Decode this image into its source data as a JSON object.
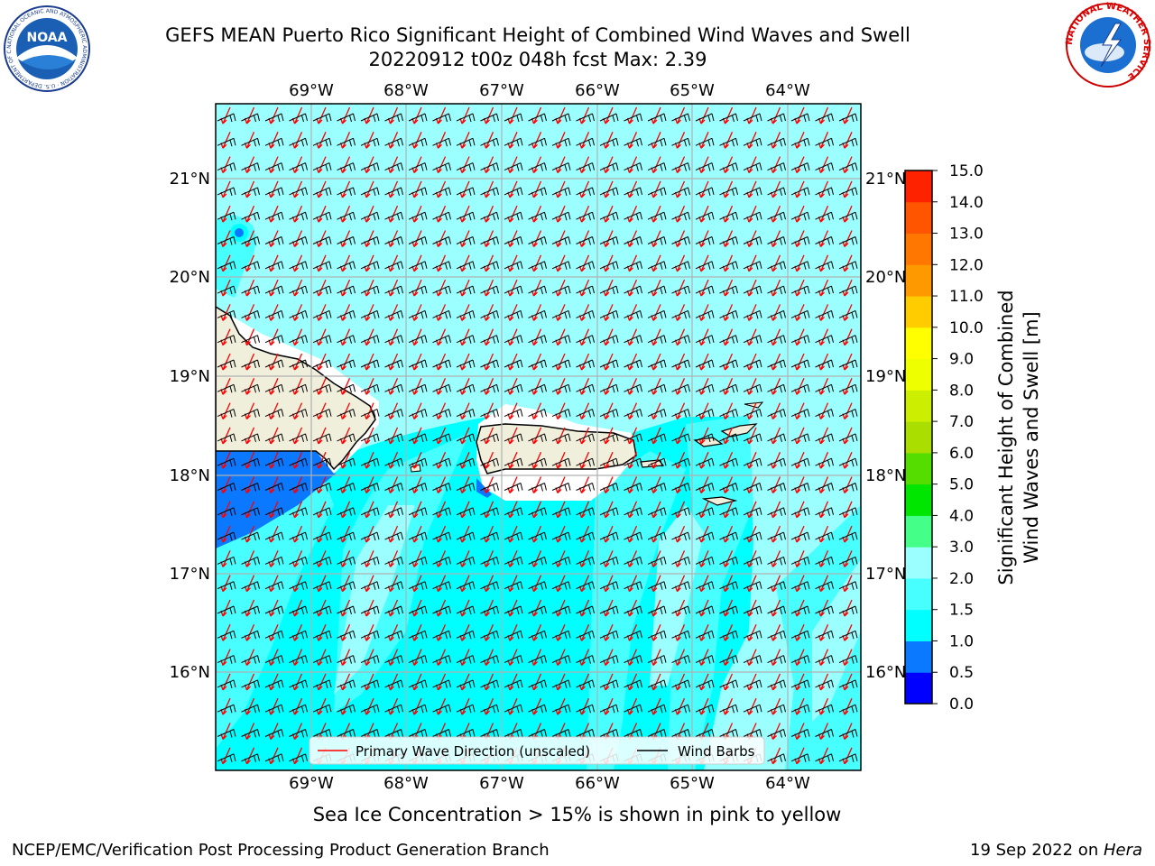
{
  "header": {
    "title_line1": "GEFS MEAN Puerto Rico Significant Height of Combined Wind Waves and Swell",
    "title_line2": "20220912 t00z 048h fcst   Max: 2.39"
  },
  "logos": {
    "noaa": {
      "text": "NOAA",
      "ring_text": "NATIONAL OCEANIC AND ATMOSPHERIC ADMINISTRATION · U.S. DEPARTMENT OF COMMERCE"
    },
    "nws": {
      "ring_text": "NATIONAL WEATHER SERVICE"
    }
  },
  "map": {
    "lon_labels": [
      "69°W",
      "68°W",
      "67°W",
      "66°W",
      "65°W",
      "64°W"
    ],
    "lat_labels": [
      "21°N",
      "20°N",
      "19°N",
      "18°N",
      "17°N",
      "16°N"
    ],
    "legend": {
      "wave_dir_label": "Primary Wave Direction (unscaled)",
      "wind_barb_label": "Wind Barbs"
    }
  },
  "colorbar": {
    "label_line1": "Significant Height of Combined",
    "label_line2": "Wind Waves and Swell [m]",
    "ticks": [
      "0.0",
      "0.5",
      "1.0",
      "1.5",
      "2.0",
      "3.0",
      "4.0",
      "5.0",
      "6.0",
      "7.0",
      "8.0",
      "9.0",
      "10.0",
      "11.0",
      "12.0",
      "13.0",
      "14.0",
      "15.0"
    ],
    "colors": [
      "#0000ff",
      "#0a78ff",
      "#00ffff",
      "#48ffff",
      "#9cffff",
      "#44ff88",
      "#00e600",
      "#55dd00",
      "#aadd00",
      "#ccee00",
      "#eeff00",
      "#ffff00",
      "#ffcc00",
      "#ff9900",
      "#ff7700",
      "#ff5500",
      "#ff2200"
    ]
  },
  "caption": "Sea Ice Concentration > 15% is shown in pink to yellow",
  "footer": {
    "left": "NCEP/EMC/Verification Post Processing Product Generation Branch",
    "right_date": "19 Sep 2022 on ",
    "right_host": "Hera"
  }
}
